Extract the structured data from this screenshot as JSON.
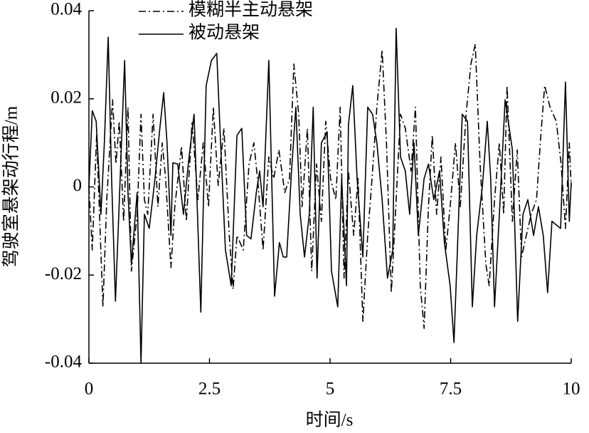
{
  "chart_data": {
    "type": "line",
    "xlabel": "时间/s",
    "ylabel": "驾驶室悬架动行程/m",
    "xlim": [
      0,
      10
    ],
    "ylim": [
      -0.04,
      0.04
    ],
    "xticks": [
      0,
      2.5,
      5,
      7.5,
      10
    ],
    "yticks": [
      -0.04,
      -0.02,
      0,
      0.02,
      0.04
    ],
    "grid": false,
    "series": [
      {
        "name": "模糊半主动悬架",
        "color": "#000000",
        "linestyle": "dashdot",
        "x": [
          0,
          0.07,
          0.16,
          0.22,
          0.29,
          0.37,
          0.49,
          0.56,
          0.63,
          0.72,
          0.81,
          0.88,
          1.0,
          1.08,
          1.15,
          1.22,
          1.33,
          1.43,
          1.52,
          1.59,
          1.7,
          1.78,
          1.92,
          2.02,
          2.14,
          2.26,
          2.37,
          2.48,
          2.58,
          2.68,
          2.8,
          2.91,
          2.99,
          3.07,
          3.2,
          3.32,
          3.42,
          3.51,
          3.61,
          3.73,
          3.83,
          3.94,
          4.06,
          4.16,
          4.25,
          4.35,
          4.42,
          4.53,
          4.62,
          4.72,
          4.82,
          4.91,
          5.01,
          5.12,
          5.21,
          5.29,
          5.38,
          5.49,
          5.58,
          5.68,
          5.78,
          5.87,
          5.97,
          6.08,
          6.17,
          6.27,
          6.37,
          6.46,
          6.56,
          6.68,
          6.77,
          6.87,
          6.95,
          7.04,
          7.12,
          7.21,
          7.3,
          7.4,
          7.49,
          7.6,
          7.7,
          7.82,
          7.92,
          8.01,
          8.11,
          8.23,
          8.3,
          8.41,
          8.51,
          8.6,
          8.67,
          8.78,
          8.88,
          8.97,
          9.07,
          9.17,
          9.28,
          9.37,
          9.45,
          9.56,
          9.69,
          9.79,
          9.88,
          9.96,
          10
        ],
        "values": [
          0,
          -0.0143,
          0.0117,
          -0.0062,
          -0.0272,
          -0.0029,
          0.0198,
          0.0052,
          0.0149,
          -0.0078,
          0.0181,
          -0.0191,
          -0.0062,
          0.0165,
          -0.0029,
          -0.0062,
          0.0165,
          -0.0045,
          0.01,
          0.0019,
          -0.0183,
          -0.0045,
          0.0092,
          -0.0078,
          0.0149,
          -0.0029,
          0.01,
          -0.0045,
          0.0181,
          0.0003,
          0.0133,
          -0.011,
          -0.0232,
          -0.011,
          -0.0143,
          0.0052,
          0.01,
          0.0003,
          -0.0143,
          0.0068,
          0.0019,
          0.0084,
          -0.0013,
          0.0019,
          0.0279,
          0.0165,
          -0.0045,
          0.0133,
          -0.0191,
          0.0052,
          -0.0078,
          0.0149,
          0.0019,
          -0.0029,
          0.0181,
          -0.0207,
          0.0036,
          -0.011,
          0.0019,
          -0.0305,
          -0.011,
          0.0019,
          0.0181,
          0.0311,
          0.01,
          -0.024,
          -0.0029,
          0.0165,
          0.0133,
          0.0036,
          0.0181,
          -0.0224,
          -0.0321,
          -0.0045,
          0.0117,
          -0.0062,
          0.0068,
          -0.0143,
          -0.0045,
          0.01,
          -0.0045,
          0.0165,
          0.0279,
          0.0324,
          0.0052,
          -0.0175,
          -0.0224,
          -0.0029,
          0.01,
          -0.0062,
          0.023,
          -0.0078,
          0.0084,
          -0.0159,
          -0.011,
          -0.0062,
          -0.0029,
          0.0117,
          0.023,
          0.0181,
          0.0149,
          0.0052,
          -0.0094,
          0.01,
          0
        ]
      },
      {
        "name": "被动悬架",
        "color": "#000000",
        "linestyle": "solid",
        "x": [
          0,
          0.07,
          0.15,
          0.25,
          0.32,
          0.4,
          0.47,
          0.55,
          0.62,
          0.74,
          0.81,
          0.88,
          1.0,
          1.08,
          1.15,
          1.25,
          1.37,
          1.47,
          1.55,
          1.62,
          1.7,
          1.74,
          1.84,
          1.96,
          2.06,
          2.18,
          2.32,
          2.43,
          2.54,
          2.65,
          2.73,
          2.83,
          2.95,
          3.07,
          3.17,
          3.27,
          3.36,
          3.47,
          3.54,
          3.61,
          3.73,
          3.85,
          3.95,
          4.03,
          4.1,
          4.2,
          4.29,
          4.38,
          4.47,
          4.57,
          4.65,
          4.73,
          4.82,
          4.94,
          5.03,
          5.16,
          5.24,
          5.34,
          5.38,
          5.47,
          5.56,
          5.68,
          5.78,
          5.88,
          5.97,
          6.08,
          6.19,
          6.3,
          6.37,
          6.46,
          6.56,
          6.65,
          6.74,
          6.83,
          6.95,
          7.04,
          7.15,
          7.27,
          7.37,
          7.49,
          7.57,
          7.64,
          7.74,
          7.85,
          7.95,
          8.04,
          8.16,
          8.26,
          8.33,
          8.41,
          8.51,
          8.63,
          8.78,
          8.89,
          9.0,
          9.1,
          9.22,
          9.32,
          9.42,
          9.51,
          9.6,
          9.78,
          9.88,
          9.96,
          10
        ],
        "values": [
          0,
          0.0173,
          0.0149,
          -0.0062,
          0.01,
          0.034,
          0.0019,
          -0.0259,
          -0.0062,
          0.0287,
          -0.0013,
          -0.0175,
          -0.0013,
          -0.04,
          -0.0062,
          -0.0094,
          0.0019,
          0.0133,
          0.0214,
          0.01,
          -0.011,
          0.0055,
          0.0052,
          -0.0062,
          0.0052,
          0.0165,
          -0.0284,
          0.023,
          0.0287,
          0.0303,
          0.01,
          -0.0143,
          -0.0224,
          0.0117,
          0.0133,
          -0.011,
          -0.0118,
          -0.0013,
          0.0036,
          -0.0045,
          0.0287,
          -0.0248,
          -0.0126,
          -0.0159,
          -0.0159,
          0.0036,
          0.0181,
          -0.0062,
          -0.0159,
          -0.0062,
          0.0181,
          -0.0207,
          0.01,
          0.0125,
          -0.0191,
          -0.0272,
          0.0019,
          -0.0224,
          0.0141,
          0.023,
          0.0019,
          -0.0159,
          0.0181,
          0.0165,
          0.01,
          -0.0029,
          -0.0207,
          -0.0143,
          0.036,
          0.0068,
          0.0036,
          -0.0062,
          0.01,
          -0.011,
          0.0019,
          0.0052,
          -0.0029,
          0.0036,
          -0.0126,
          -0.0224,
          -0.0353,
          -0.0143,
          0.0165,
          0.0149,
          -0.0272,
          -0.011,
          0.0003,
          0.0149,
          0.0019,
          -0.0272,
          -0.0062,
          0.0198,
          0.0084,
          -0.0305,
          -0.0062,
          -0.0029,
          -0.011,
          -0.0045,
          -0.011,
          -0.024,
          -0.0078,
          -0.0094,
          0.0238,
          -0.0078,
          0.0011
        ]
      }
    ]
  }
}
